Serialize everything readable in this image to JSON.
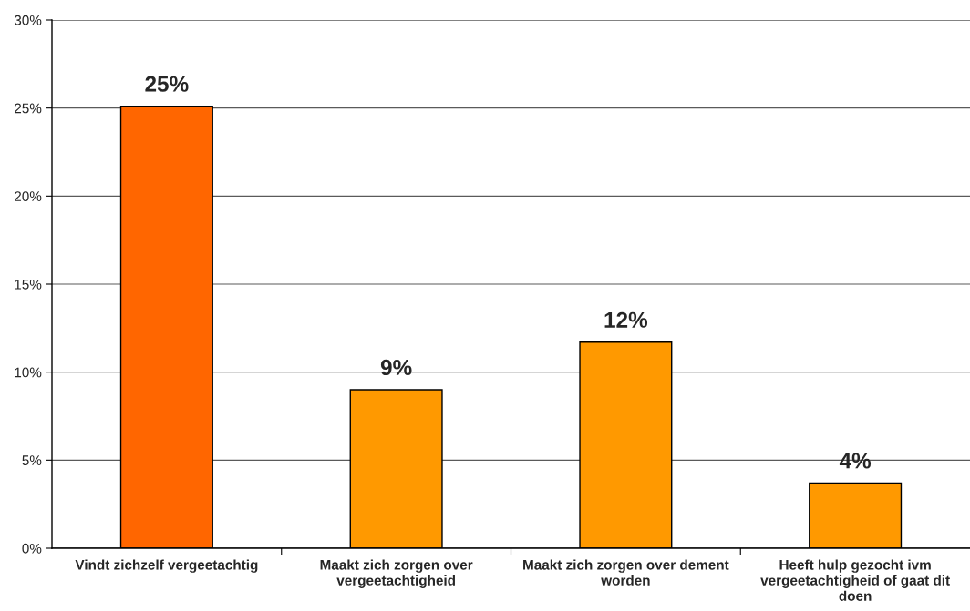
{
  "chart_data": {
    "type": "bar",
    "categories": [
      "Vindt zichzelf vergeetachtig",
      "Maakt zich zorgen over vergeetachtigheid",
      "Maakt zich zorgen over dement worden",
      "Heeft hulp gezocht ivm vergeetachtigheid of gaat dit doen"
    ],
    "values": [
      25.1,
      9.0,
      11.7,
      3.7
    ],
    "colors": [
      "#ff6600",
      "#ff9900",
      "#ff9900",
      "#ff9900"
    ],
    "value_labels": [
      "25%",
      "9%",
      "12%",
      "4%"
    ],
    "ylim": [
      0,
      30
    ],
    "yticks": [
      {
        "value": 0,
        "label": "0%"
      },
      {
        "value": 5,
        "label": "5%"
      },
      {
        "value": 10,
        "label": "10%"
      },
      {
        "value": 15,
        "label": "15%"
      },
      {
        "value": 20,
        "label": "20%"
      },
      {
        "value": 25,
        "label": "25%"
      },
      {
        "value": 30,
        "label": "30%"
      }
    ],
    "grid": "y"
  }
}
